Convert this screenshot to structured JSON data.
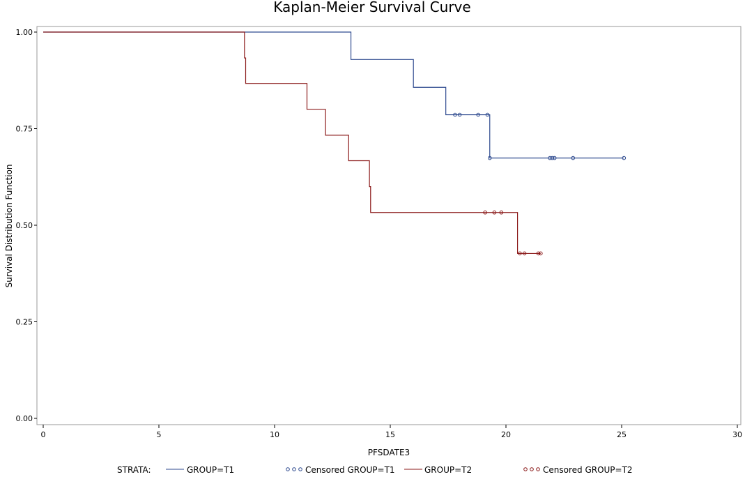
{
  "chart_data": {
    "type": "line",
    "title": "Kaplan-Meier Survival Curve",
    "xlabel": "PFSDATE3",
    "ylabel": "Survival Distribution Function",
    "xlim": [
      0,
      30
    ],
    "ylim": [
      0,
      1
    ],
    "xticks": [
      "0",
      "5",
      "10",
      "15",
      "20",
      "25",
      "30"
    ],
    "yticks": [
      "0.00",
      "0.25",
      "0.50",
      "0.75",
      "1.00"
    ],
    "grid": false,
    "legend_position": "bottom",
    "legend_title": "STRATA:",
    "legend_entries": [
      "GROUP=T1",
      "Censored GROUP=T1",
      "GROUP=T2",
      "Censored GROUP=T2"
    ],
    "series": [
      {
        "name": "GROUP=T1",
        "color": "#2e4a8f",
        "x": [
          0,
          13.3,
          16.0,
          17.4,
          19.3,
          25.1
        ],
        "y": [
          1.0,
          0.929,
          0.857,
          0.786,
          0.674,
          0.674
        ],
        "censored_x": [
          17.8,
          18.0,
          18.8,
          19.2,
          19.3,
          21.9,
          22.0,
          22.1,
          22.9,
          25.1
        ],
        "censored_y": [
          0.786,
          0.786,
          0.786,
          0.786,
          0.674,
          0.674,
          0.674,
          0.674,
          0.674,
          0.674
        ]
      },
      {
        "name": "GROUP=T2",
        "color": "#8b1a1a",
        "x": [
          0,
          8.7,
          8.75,
          11.4,
          12.2,
          13.2,
          14.1,
          14.15,
          20.5,
          21.5
        ],
        "y": [
          1.0,
          0.933,
          0.867,
          0.8,
          0.733,
          0.667,
          0.6,
          0.533,
          0.427,
          0.427
        ],
        "censored_x": [
          19.1,
          19.5,
          19.8,
          20.6,
          20.8,
          21.4,
          21.5
        ],
        "censored_y": [
          0.533,
          0.533,
          0.533,
          0.427,
          0.427,
          0.427,
          0.427
        ]
      }
    ]
  }
}
